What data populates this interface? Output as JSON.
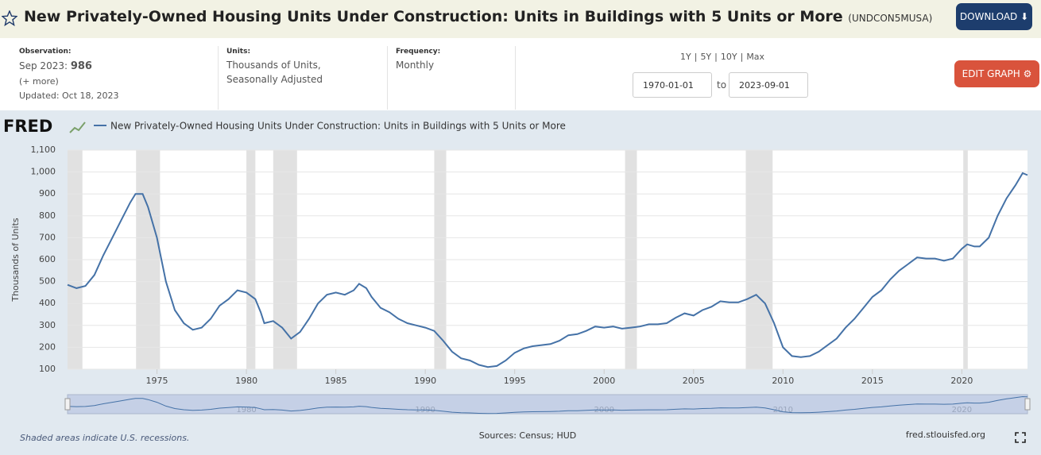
{
  "header": {
    "title": "New Privately-Owned Housing Units Under Construction: Units in Buildings with 5 Units or More",
    "series_id": "(UNDCON5MUSA)",
    "download": "DOWNLOAD",
    "edit_graph": "EDIT GRAPH"
  },
  "info": {
    "observation_label": "Observation:",
    "observation_date": "Sep 2023:",
    "observation_value": 986,
    "more": "(+ more)",
    "updated": "Updated: Oct 18, 2023",
    "units_label": "Units:",
    "units_line1": "Thousands of Units,",
    "units_line2": "Seasonally Adjusted",
    "frequency_label": "Frequency:",
    "frequency": "Monthly",
    "ranges": [
      "1Y",
      "5Y",
      "10Y",
      "Max"
    ],
    "range_sep": "|",
    "start_date": "1970-01-01",
    "to": "to",
    "end_date": "2023-09-01"
  },
  "logo": "FRED",
  "footer": {
    "recession_note": "Shaded areas indicate U.S. recessions.",
    "sources": "Sources: Census; HUD",
    "site": "fred.stlouisfed.org"
  },
  "chart_data": {
    "type": "line",
    "ylabel": "Thousands of Units",
    "xlim": [
      1970,
      2023.67
    ],
    "xticks": [
      1975,
      1980,
      1985,
      1990,
      1995,
      2000,
      2005,
      2010,
      2015,
      2020
    ],
    "ylim": [
      100,
      1100
    ],
    "yticks": [
      100,
      200,
      300,
      400,
      500,
      600,
      700,
      800,
      900,
      {
        "value": 1000,
        "label": "1,000"
      },
      {
        "value": 1100,
        "label": "1,100"
      }
    ],
    "grid": true,
    "recessions": [
      [
        1969.92,
        1970.83
      ],
      [
        1973.83,
        1975.17
      ],
      [
        1980,
        1980.5
      ],
      [
        1981.5,
        1982.83
      ],
      [
        1990.5,
        1991.17
      ],
      [
        2001.17,
        2001.83
      ],
      [
        2007.92,
        2009.42
      ],
      [
        2020.08,
        2020.33
      ]
    ],
    "navigator_ticks": [
      1980,
      1990,
      2000,
      2010,
      2020
    ],
    "x": [
      1970,
      1970.5,
      1971,
      1971.5,
      1972,
      1972.5,
      1973,
      1973.5,
      1973.8,
      1974.2,
      1974.5,
      1975,
      1975.5,
      1976,
      1976.5,
      1977,
      1977.5,
      1978,
      1978.5,
      1979,
      1979.5,
      1980,
      1980.5,
      1980.8,
      1981,
      1981.5,
      1982,
      1982.5,
      1983,
      1983.5,
      1984,
      1984.5,
      1985,
      1985.5,
      1986,
      1986.3,
      1986.7,
      1987,
      1987.5,
      1988,
      1988.5,
      1989,
      1989.5,
      1990,
      1990.5,
      1991,
      1991.5,
      1992,
      1992.5,
      1993,
      1993.5,
      1994,
      1994.5,
      1995,
      1995.5,
      1996,
      1996.5,
      1997,
      1997.5,
      1998,
      1998.5,
      1999,
      1999.5,
      2000,
      2000.5,
      2001,
      2001.5,
      2002,
      2002.5,
      2003,
      2003.5,
      2004,
      2004.5,
      2005,
      2005.5,
      2006,
      2006.5,
      2007,
      2007.5,
      2008,
      2008.5,
      2009,
      2009.5,
      2010,
      2010.5,
      2011,
      2011.5,
      2012,
      2012.5,
      2013,
      2013.5,
      2014,
      2014.5,
      2015,
      2015.5,
      2016,
      2016.5,
      2017,
      2017.5,
      2018,
      2018.5,
      2019,
      2019.5,
      2020,
      2020.3,
      2020.7,
      2021,
      2021.5,
      2022,
      2022.5,
      2023,
      2023.4,
      2023.67
    ],
    "series": [
      {
        "name": "New Privately-Owned Housing Units Under Construction: Units in Buildings with 5 Units or More",
        "color": "#4572a7",
        "values": [
          485,
          470,
          480,
          530,
          620,
          700,
          780,
          860,
          900,
          900,
          840,
          700,
          500,
          370,
          310,
          280,
          290,
          330,
          390,
          420,
          460,
          450,
          420,
          360,
          310,
          320,
          290,
          240,
          270,
          330,
          400,
          440,
          450,
          440,
          460,
          490,
          470,
          430,
          380,
          360,
          330,
          310,
          300,
          290,
          275,
          230,
          180,
          150,
          140,
          120,
          110,
          115,
          140,
          175,
          195,
          205,
          210,
          215,
          230,
          255,
          260,
          275,
          295,
          290,
          295,
          285,
          290,
          295,
          305,
          305,
          310,
          335,
          355,
          345,
          370,
          385,
          410,
          405,
          405,
          420,
          440,
          400,
          310,
          200,
          160,
          155,
          160,
          180,
          210,
          240,
          290,
          330,
          380,
          430,
          460,
          510,
          550,
          580,
          610,
          605,
          605,
          595,
          605,
          650,
          670,
          660,
          660,
          700,
          800,
          880,
          940,
          995,
          986
        ]
      }
    ]
  }
}
